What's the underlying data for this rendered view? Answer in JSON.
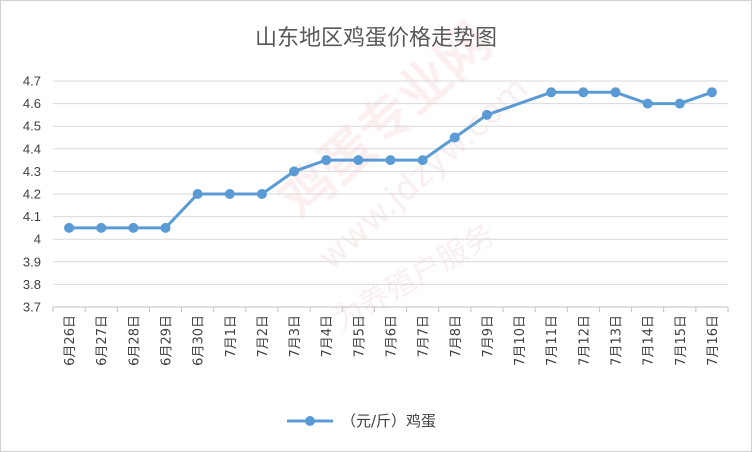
{
  "chart_data": {
    "type": "line",
    "title": "山东地区鸡蛋价格走势图",
    "categories": [
      "6月26日",
      "6月27日",
      "6月28日",
      "6月29日",
      "6月30日",
      "7月1日",
      "7月2日",
      "7月3日",
      "7月4日",
      "7月5日",
      "7月6日",
      "7月7日",
      "7月8日",
      "7月9日",
      "7月10日",
      "7月11日",
      "7月12日",
      "7月13日",
      "7月14日",
      "7月15日",
      "7月16日"
    ],
    "series": [
      {
        "name": "（元/斤）鸡蛋",
        "values": [
          4.05,
          4.05,
          4.05,
          4.05,
          4.2,
          4.2,
          4.2,
          4.3,
          4.35,
          4.35,
          4.35,
          4.35,
          4.45,
          4.55,
          null,
          4.65,
          4.65,
          4.65,
          4.6,
          4.6,
          4.65
        ],
        "color": "#5b9bd5"
      }
    ],
    "ylim": [
      3.7,
      4.7
    ],
    "yticks": [
      3.7,
      3.8,
      3.9,
      4,
      4.1,
      4.2,
      4.3,
      4.4,
      4.5,
      4.6,
      4.7
    ],
    "xlabel": "",
    "ylabel": "",
    "grid": true,
    "legend_position": "bottom"
  },
  "watermark": {
    "main": "鸡蛋专业网",
    "url": "www.jdzyw.com",
    "slogan": "为养殖户服务"
  }
}
